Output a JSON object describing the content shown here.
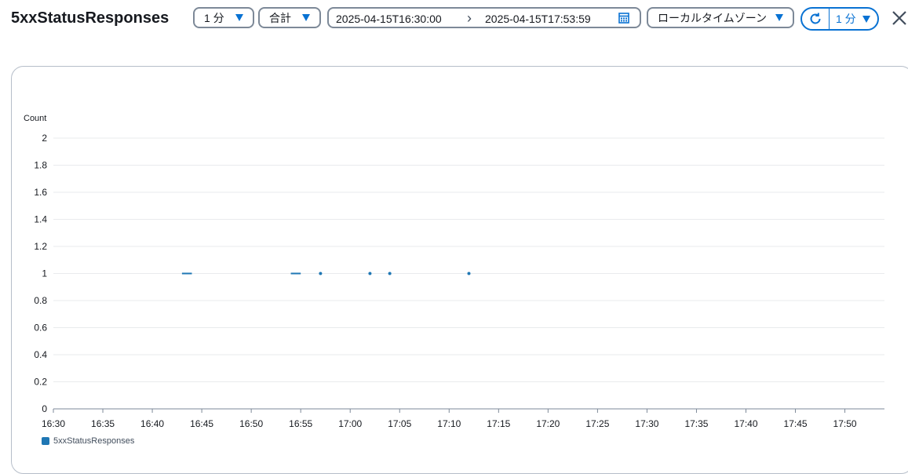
{
  "header": {
    "title": "5xxStatusResponses",
    "period_label": "1 分",
    "statistic_label": "合計",
    "date_start": "2025-04-15T16:30:00",
    "date_end": "2025-04-15T17:53:59",
    "timezone_label": "ローカルタイムゾーン",
    "refresh_interval_label": "1 分"
  },
  "colors": {
    "accent": "#0972d3",
    "series": "#1f77b4",
    "grid": "#e9ebed",
    "axis": "#7d8998"
  },
  "icons": [
    "chevron-down-icon",
    "chevron-right-icon",
    "calendar-icon",
    "refresh-icon",
    "close-icon"
  ],
  "chart_data": {
    "type": "line",
    "ylabel": "Count",
    "ylim": [
      0,
      2
    ],
    "y_ticks": [
      "0",
      "0.2",
      "0.4",
      "0.6",
      "0.8",
      "1",
      "1.2",
      "1.4",
      "1.6",
      "1.8",
      "2"
    ],
    "x_range": [
      "16:30",
      "17:54"
    ],
    "x_ticks": [
      "16:30",
      "16:35",
      "16:40",
      "16:45",
      "16:50",
      "16:55",
      "17:00",
      "17:05",
      "17:10",
      "17:15",
      "17:20",
      "17:25",
      "17:30",
      "17:35",
      "17:40",
      "17:45",
      "17:50"
    ],
    "grid": true,
    "legend_position": "bottom-left",
    "series": [
      {
        "name": "5xxStatusResponses",
        "segments": [
          [
            [
              "16:43",
              1
            ],
            [
              "16:44",
              1
            ]
          ],
          [
            [
              "16:54",
              1
            ],
            [
              "16:55",
              1
            ]
          ],
          [
            [
              "16:57",
              1
            ]
          ],
          [
            [
              "17:02",
              1
            ]
          ],
          [
            [
              "17:04",
              1
            ]
          ],
          [
            [
              "17:12",
              1
            ]
          ]
        ]
      }
    ]
  }
}
